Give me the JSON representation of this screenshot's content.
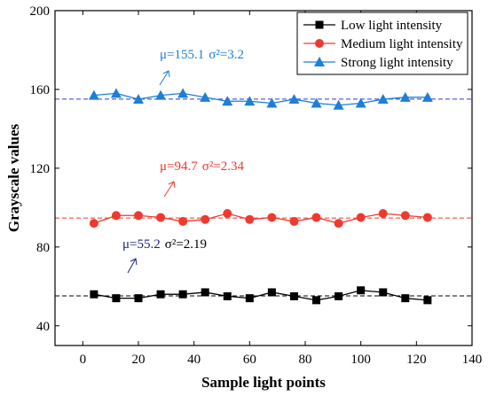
{
  "chart_data": {
    "type": "line",
    "xlabel": "Sample light points",
    "ylabel": "Grayscale values",
    "xlim": [
      -10,
      140
    ],
    "ylim": [
      30,
      200
    ],
    "xticks": [
      0,
      20,
      40,
      60,
      80,
      100,
      120,
      140
    ],
    "yticks": [
      40,
      80,
      120,
      160,
      200
    ],
    "grid": false,
    "legend_position": "top-right",
    "x": [
      4,
      12,
      20,
      28,
      36,
      44,
      52,
      60,
      68,
      76,
      84,
      92,
      100,
      108,
      116,
      124
    ],
    "series": [
      {
        "name": "Low light intensity",
        "color": "#000000",
        "marker": "square",
        "values": [
          56,
          54,
          54,
          56,
          56,
          57,
          55,
          54,
          57,
          55,
          53,
          55,
          58,
          57,
          54,
          53
        ],
        "mean": 55.2,
        "annotation": {
          "mu": "μ=55.2",
          "sigma": "σ²=2.19",
          "mu_color": "#1a237e",
          "sigma_color": "#000000"
        }
      },
      {
        "name": "Medium light intensity",
        "color": "#f0392e",
        "marker": "circle",
        "values": [
          92,
          96,
          96,
          95,
          93,
          94,
          97,
          94,
          95,
          93,
          95,
          92,
          95,
          97,
          96,
          95
        ],
        "mean": 94.7,
        "annotation": {
          "mu": "μ=94.7",
          "sigma": "σ²=2.34",
          "mu_color": "#f0392e",
          "sigma_color": "#f0392e"
        }
      },
      {
        "name": "Strong light intensity",
        "color": "#1e7fd6",
        "marker": "triangle",
        "values": [
          157,
          158,
          155,
          157,
          158,
          156,
          154,
          154,
          153,
          155,
          153,
          152,
          153,
          155,
          156,
          156
        ],
        "mean": 155.1,
        "annotation": {
          "mu": "μ=155.1",
          "sigma": "σ²=3.2",
          "mu_color": "#1e7fd6",
          "sigma_color": "#1e7fd6"
        }
      }
    ],
    "mean_line_colors": [
      "#000000",
      "#f0392e",
      "#2a3bd6"
    ]
  }
}
